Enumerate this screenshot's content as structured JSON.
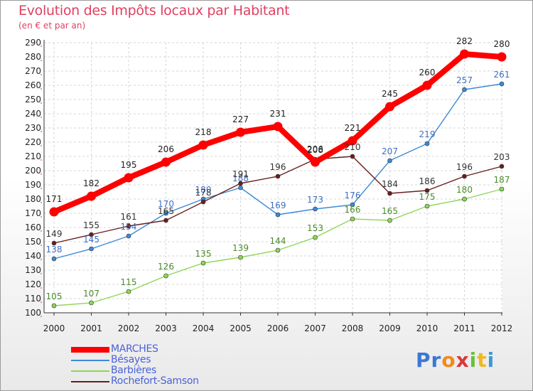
{
  "title": "Evolution des Impôts locaux par Habitant",
  "subtitle": "(en € et par an)",
  "logo": {
    "letters": [
      "P",
      "r",
      "o",
      "x",
      "i",
      "t",
      "i"
    ],
    "colors": [
      "#3a78d6",
      "#3a78d6",
      "#f08a1e",
      "#d83a3a",
      "#6cbf3a",
      "#f0b81e",
      "#3a9ad6"
    ]
  },
  "chart_data": {
    "type": "line",
    "title": "Evolution des Impôts locaux par Habitant",
    "subtitle": "(en € et par an)",
    "xlabel": "",
    "ylabel": "",
    "x": [
      "2000",
      "2001",
      "2002",
      "2003",
      "2004",
      "2005",
      "2006",
      "2007",
      "2008",
      "2009",
      "2010",
      "2011",
      "2012"
    ],
    "ylim": [
      100,
      290
    ],
    "yticks": [
      "100",
      "110",
      "120",
      "130",
      "140",
      "150",
      "160",
      "170",
      "180",
      "190",
      "200",
      "210",
      "220",
      "230",
      "240",
      "250",
      "260",
      "270",
      "280",
      "290"
    ],
    "grid": true,
    "legend": "bottom-left",
    "series": [
      {
        "name": "MARCHES",
        "color": "#ff0000",
        "values": [
          171,
          182,
          195,
          206,
          218,
          227,
          231,
          206,
          221,
          245,
          260,
          282,
          280
        ]
      },
      {
        "name": "Bésayes",
        "color": "#3d8ad6",
        "values": [
          138,
          145,
          154,
          170,
          180,
          188,
          169,
          173,
          176,
          207,
          219,
          257,
          261
        ]
      },
      {
        "name": "Barbières",
        "color": "#8ed657",
        "values": [
          105,
          107,
          115,
          126,
          135,
          139,
          144,
          153,
          166,
          165,
          175,
          180,
          187
        ]
      },
      {
        "name": "Rochefort-Samson",
        "color": "#6a1e1e",
        "values": [
          149,
          155,
          161,
          165,
          178,
          191,
          196,
          208,
          210,
          184,
          186,
          196,
          203
        ]
      }
    ]
  }
}
